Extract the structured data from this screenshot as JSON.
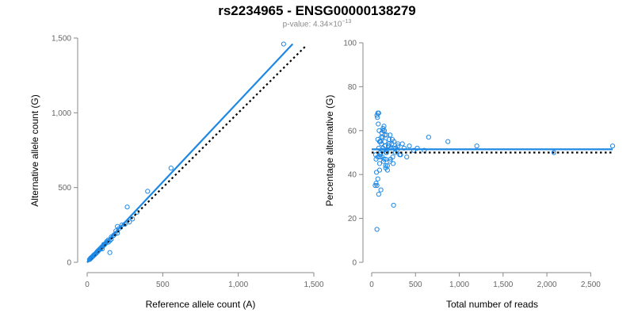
{
  "header": {
    "title": "rs2234965 - ENSG00000138279",
    "pvalue_prefix": "p-value: 4.34×10",
    "pvalue_exp": "−13"
  },
  "colors": {
    "points": "#1e88e5",
    "fit": "#1e88e5",
    "reference": "#000000",
    "axis": "#888888"
  },
  "chart_data": [
    {
      "type": "scatter",
      "xlabel": "Reference allele count (A)",
      "ylabel": "Alternative allele count (G)",
      "xlim": [
        0,
        1500
      ],
      "ylim": [
        0,
        1500
      ],
      "xticks": [
        0,
        500,
        1000,
        1500
      ],
      "xtick_labels": [
        "0",
        "500",
        "1,000",
        "1,500"
      ],
      "yticks": [
        0,
        500,
        1000,
        1500
      ],
      "ytick_labels": [
        "0",
        "500",
        "1,000",
        "1,500"
      ],
      "grid": false,
      "fit_line": {
        "x": [
          0,
          1360
        ],
        "y": [
          0,
          1460
        ],
        "style": "solid"
      },
      "reference_line": {
        "x": [
          0,
          1450
        ],
        "y": [
          0,
          1450
        ],
        "style": "dotted"
      },
      "series": [
        {
          "x": [
            1300,
            555,
            400,
            330,
            265,
            200,
            190,
            160,
            150,
            230,
            210,
            185,
            140,
            175,
            130,
            120,
            110,
            105,
            95,
            90,
            85,
            80,
            75,
            70,
            65,
            60,
            55,
            50,
            45,
            40,
            35,
            30,
            25,
            20,
            15,
            160,
            125,
            100,
            70,
            45,
            30,
            150,
            140,
            115,
            90,
            75,
            60,
            50,
            40,
            35,
            30,
            25,
            20,
            100,
            110,
            95,
            85,
            65,
            55,
            45,
            175,
            200,
            250,
            280,
            300
          ],
          "y": [
            1460,
            630,
            475,
            335,
            370,
            240,
            210,
            170,
            65,
            250,
            225,
            190,
            150,
            180,
            140,
            125,
            120,
            110,
            100,
            95,
            90,
            85,
            80,
            72,
            68,
            62,
            58,
            52,
            48,
            42,
            38,
            33,
            28,
            22,
            18,
            155,
            130,
            105,
            75,
            48,
            32,
            145,
            135,
            118,
            92,
            78,
            62,
            52,
            44,
            38,
            34,
            30,
            24,
            90,
            115,
            100,
            88,
            70,
            58,
            50,
            180,
            195,
            255,
            270,
            290
          ]
        }
      ]
    },
    {
      "type": "scatter",
      "xlabel": "Total number of reads",
      "ylabel": "Percentage alternative (G)",
      "xlim": [
        0,
        2750
      ],
      "ylim": [
        0,
        100
      ],
      "xticks": [
        0,
        500,
        1000,
        1500,
        2000,
        2500
      ],
      "xtick_labels": [
        "0",
        "500",
        "1,000",
        "1,500",
        "2,000",
        "2,500"
      ],
      "yticks": [
        0,
        20,
        40,
        60,
        80,
        100
      ],
      "ytick_labels": [
        "0",
        "20",
        "40",
        "60",
        "80",
        "100"
      ],
      "grid": false,
      "fit_line": {
        "x": [
          0,
          2750
        ],
        "y": [
          51.5,
          51.5
        ],
        "style": "solid"
      },
      "reference_line": {
        "x": [
          0,
          2750
        ],
        "y": [
          50,
          50
        ],
        "style": "dotted"
      },
      "series": [
        {
          "x": [
            2750,
            2080,
            1200,
            870,
            650,
            600,
            520,
            480,
            430,
            400,
            370,
            350,
            330,
            300,
            290,
            270,
            250,
            245,
            240,
            230,
            220,
            210,
            200,
            190,
            180,
            170,
            165,
            160,
            150,
            140,
            135,
            130,
            125,
            120,
            115,
            110,
            105,
            100,
            95,
            90,
            85,
            80,
            75,
            70,
            65,
            60,
            55,
            50,
            45,
            40,
            170,
            155,
            145,
            100,
            90,
            80,
            70,
            60,
            60,
            70,
            80,
            100,
            120,
            140,
            160,
            180,
            200,
            110,
            130,
            150,
            175,
            195,
            215,
            235,
            255,
            275,
            300,
            320,
            250,
            210,
            160,
            130,
            90,
            70,
            50
          ],
          "y": [
            53,
            50,
            53,
            55,
            57,
            51,
            52,
            51,
            53,
            48,
            52,
            54,
            49,
            53,
            51,
            50,
            26,
            45,
            48,
            54,
            52,
            46,
            56,
            53,
            44,
            58,
            50,
            47,
            55,
            62,
            46,
            52,
            57,
            51,
            59,
            54,
            33,
            50,
            48,
            55,
            60,
            31,
            63,
            56,
            66,
            67,
            41,
            36,
            49,
            35,
            50,
            53,
            60,
            49,
            45,
            52,
            48,
            35,
            15,
            68,
            68,
            55,
            48,
            47,
            43,
            42,
            54,
            57,
            61,
            58,
            51,
            53,
            47,
            56,
            55,
            52,
            54,
            49,
            52,
            58,
            44,
            60,
            42,
            38,
            47
          ]
        }
      ]
    }
  ]
}
